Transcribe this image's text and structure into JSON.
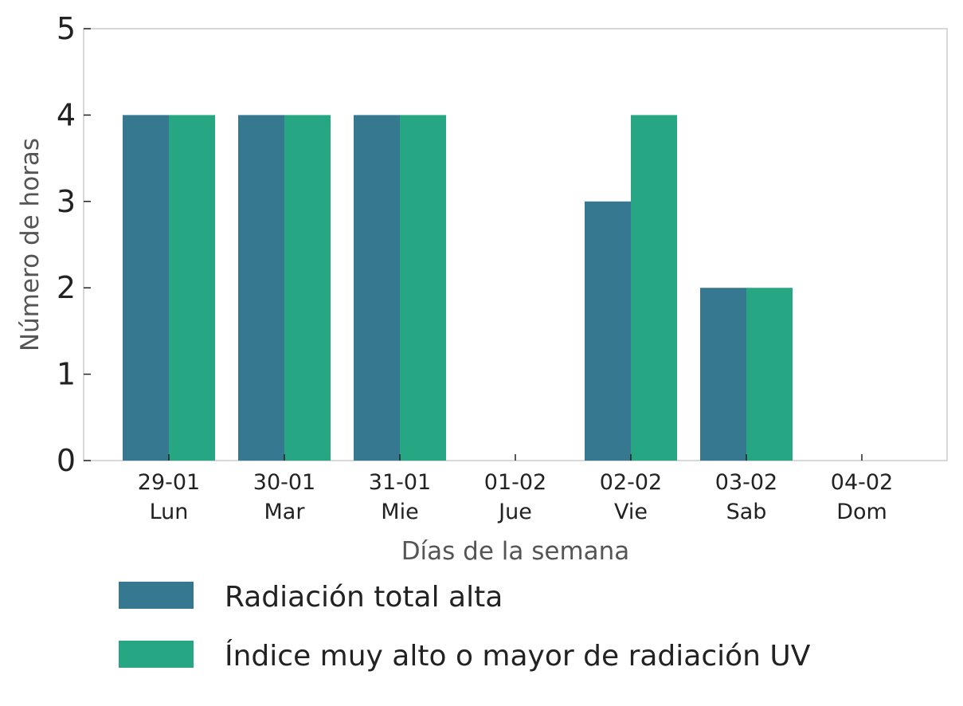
{
  "chart_data": {
    "type": "bar",
    "categories": [
      {
        "date": "29-01",
        "day": "Lun"
      },
      {
        "date": "30-01",
        "day": "Mar"
      },
      {
        "date": "31-01",
        "day": "Mie"
      },
      {
        "date": "01-02",
        "day": "Jue"
      },
      {
        "date": "02-02",
        "day": "Vie"
      },
      {
        "date": "03-02",
        "day": "Sab"
      },
      {
        "date": "04-02",
        "day": "Dom"
      }
    ],
    "series": [
      {
        "name": "Radiación total alta",
        "color": "#367890",
        "values": [
          4,
          4,
          4,
          0,
          3,
          2,
          0
        ]
      },
      {
        "name": "Índice muy alto o mayor de radiación UV",
        "color": "#27A684",
        "values": [
          4,
          4,
          4,
          0,
          4,
          2,
          0
        ]
      }
    ],
    "xlabel": "Días de la semana",
    "ylabel": "Número de horas",
    "ylim": [
      0,
      5
    ],
    "yticks": [
      0,
      1,
      2,
      3,
      4,
      5
    ],
    "grid": false,
    "legend": "bottom"
  }
}
